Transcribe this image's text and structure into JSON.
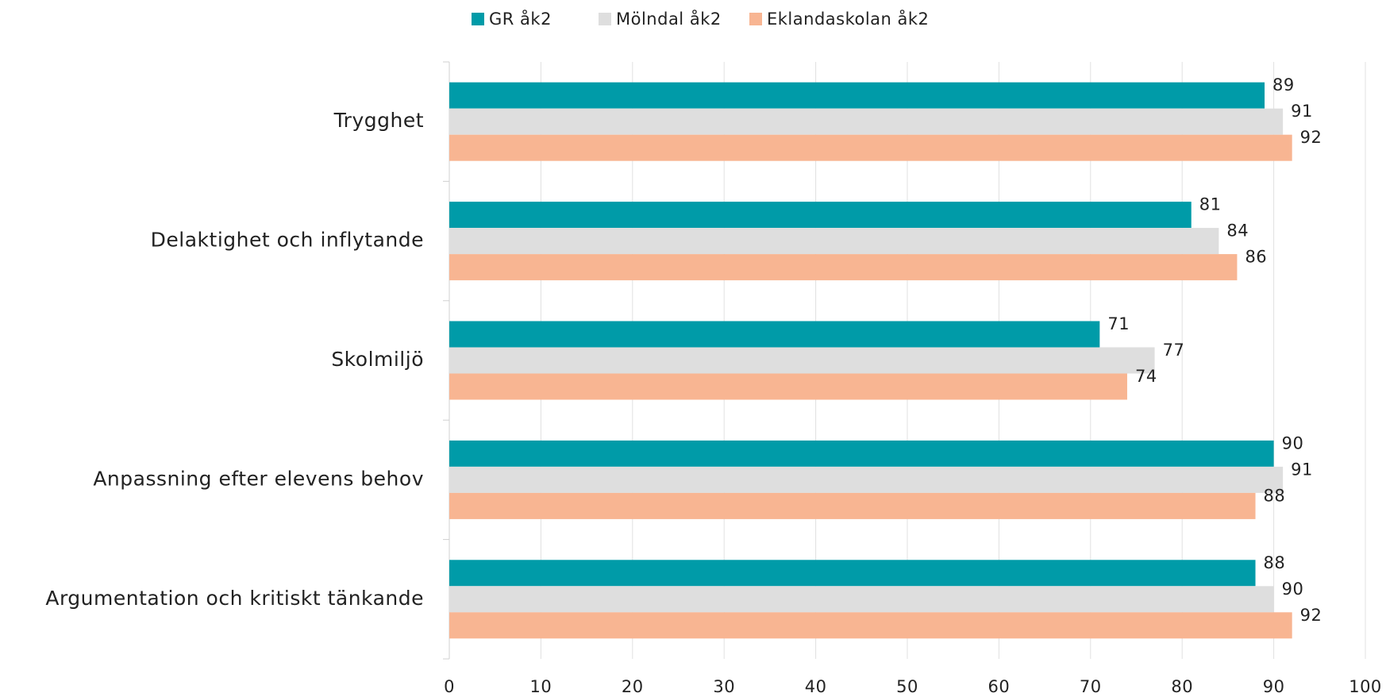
{
  "chart_data": {
    "type": "bar",
    "orientation": "horizontal",
    "categories": [
      "Trygghet",
      "Delaktighet och inflytande",
      "Skolmiljö",
      "Anpassning efter elevens behov",
      "Argumentation och kritiskt tänkande"
    ],
    "series": [
      {
        "name": "GR åk2",
        "color": "#009ba8",
        "values": [
          89,
          81,
          71,
          90,
          88
        ]
      },
      {
        "name": "Mölndal åk2",
        "color": "#dedede",
        "values": [
          91,
          84,
          77,
          91,
          90
        ]
      },
      {
        "name": "Eklandaskolan åk2",
        "color": "#f8b592",
        "values": [
          92,
          86,
          74,
          88,
          92
        ]
      }
    ],
    "xlim": [
      0,
      100
    ],
    "xticks": [
      0,
      10,
      20,
      30,
      40,
      50,
      60,
      70,
      80,
      90,
      100
    ],
    "grid": true,
    "legend": "top"
  }
}
